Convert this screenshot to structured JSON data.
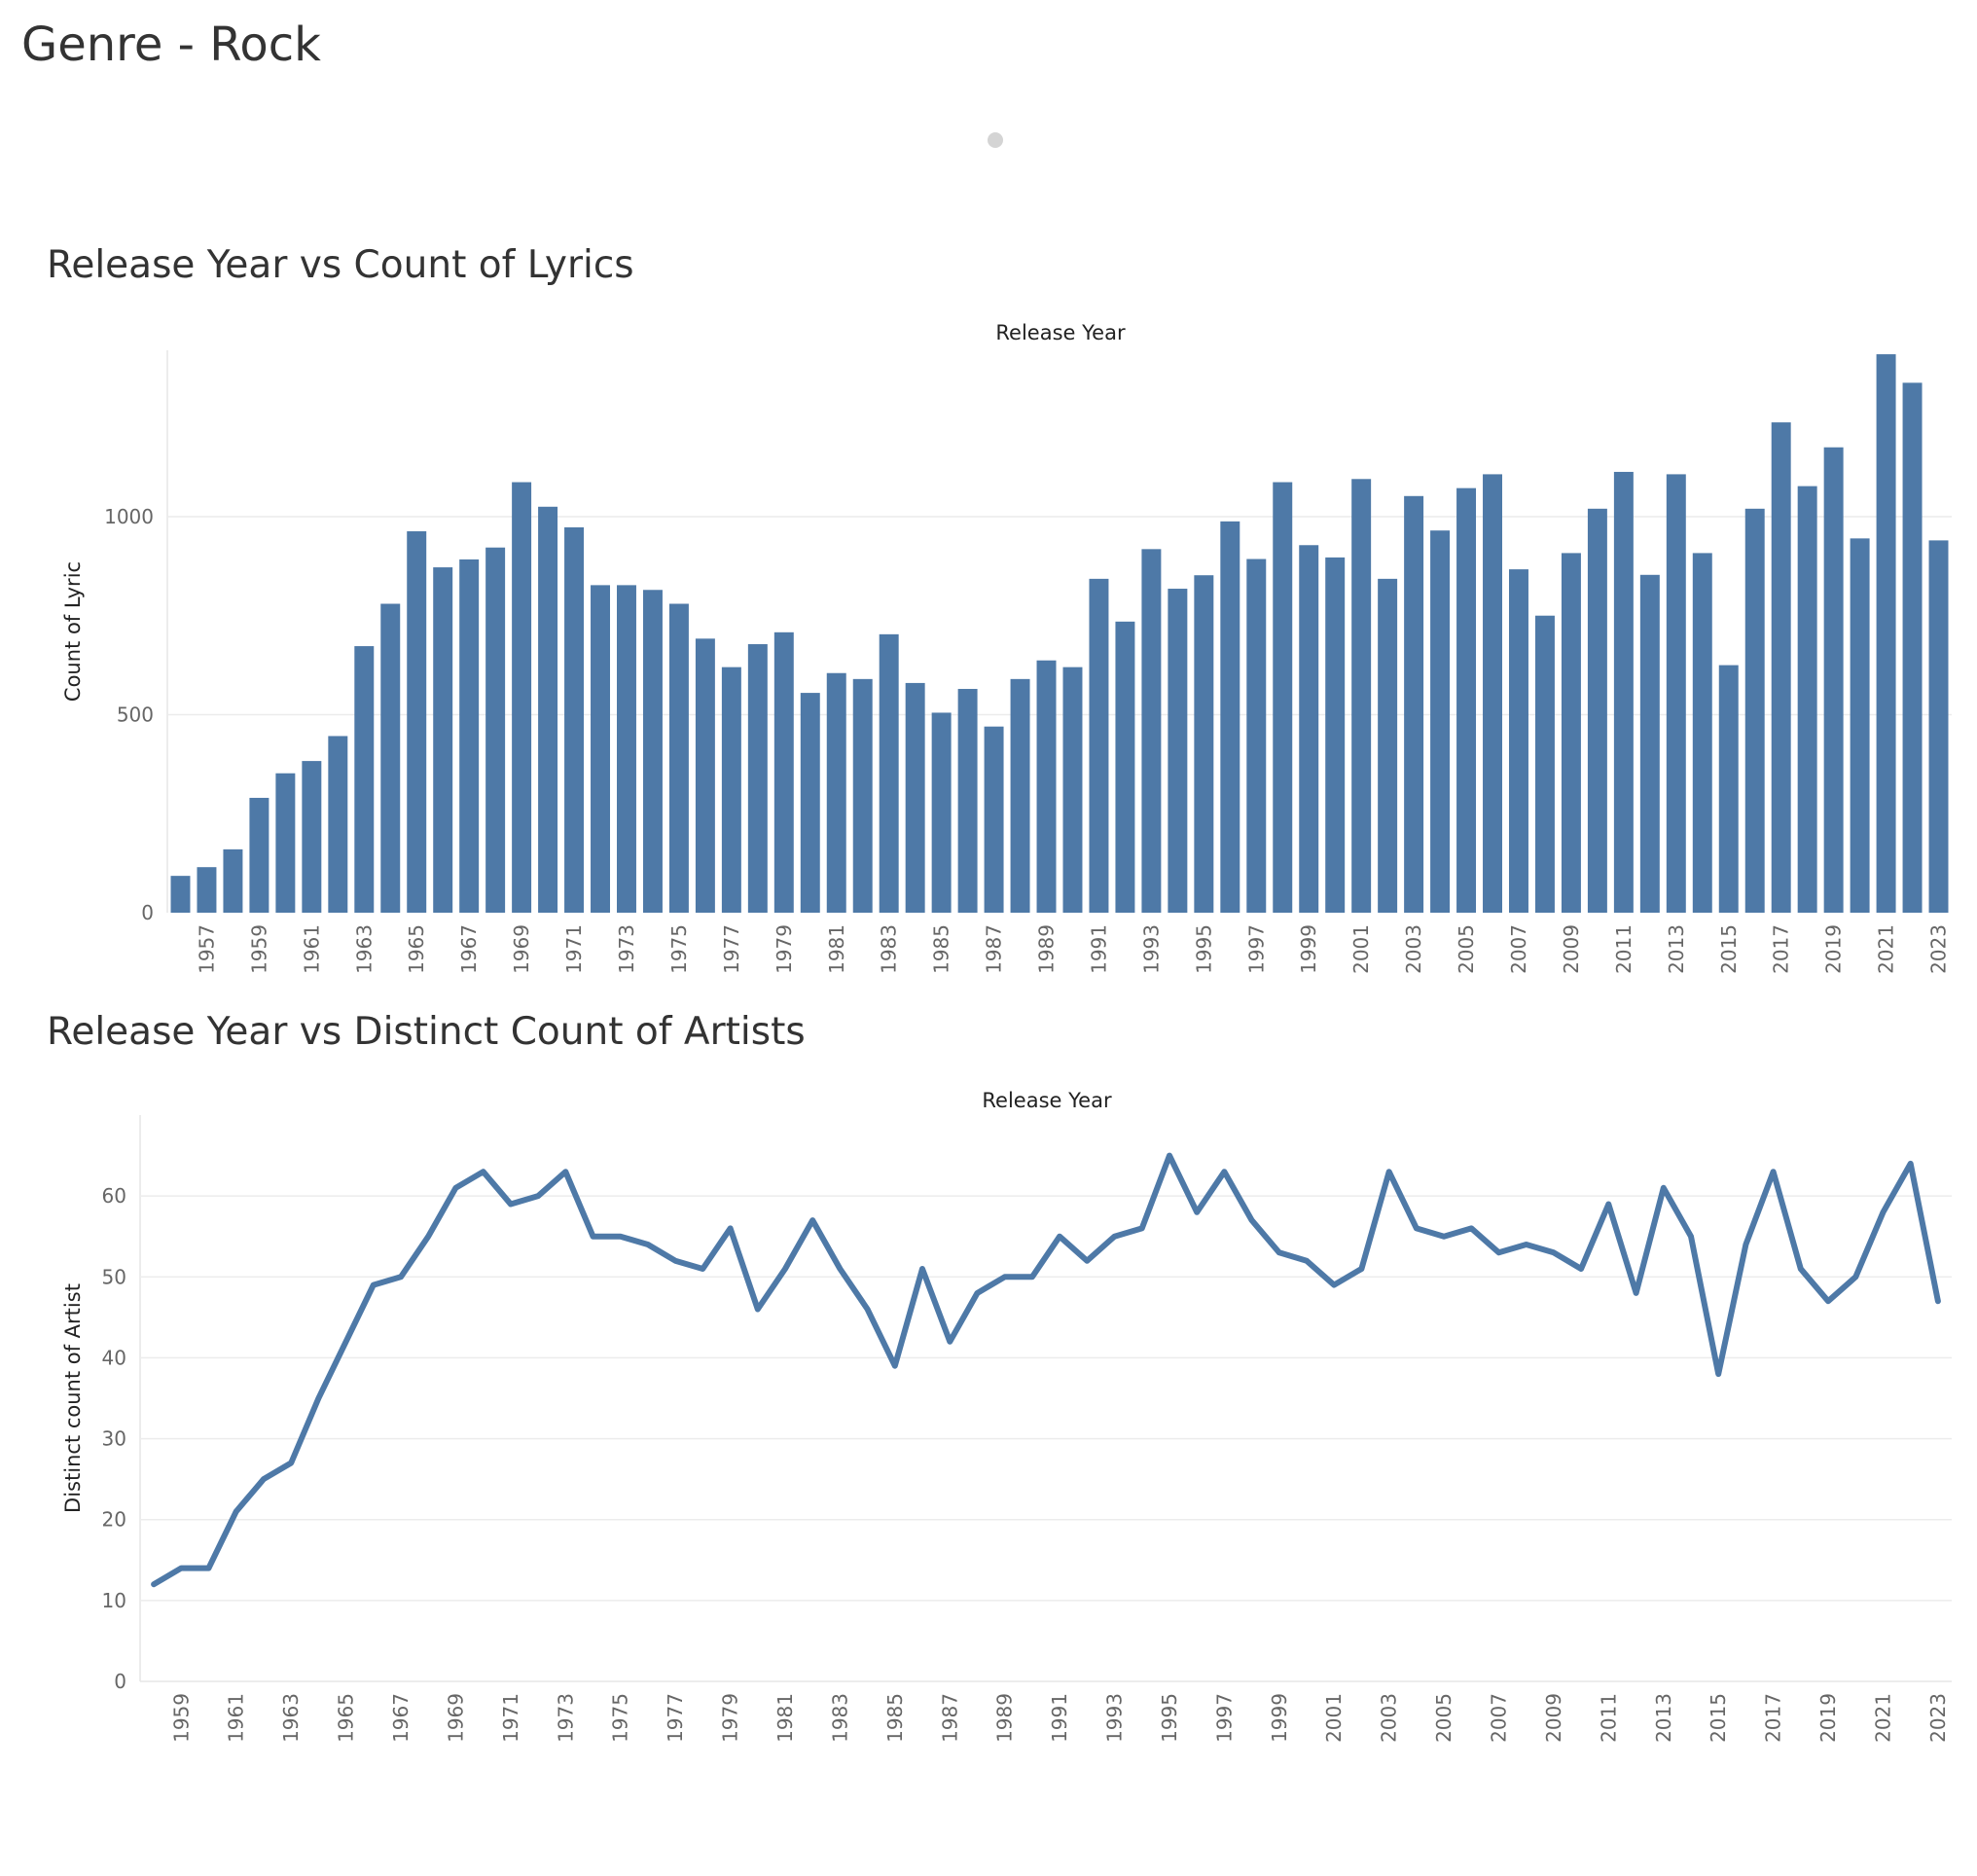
{
  "page": {
    "title": "Genre - Rock"
  },
  "colors": {
    "series": "#4e79a7",
    "grid": "#ececec",
    "text": "#333333"
  },
  "chart_data": [
    {
      "type": "bar",
      "title": "Release Year vs Count of Lyrics",
      "xlabel": "Release Year",
      "ylabel": "Count of Lyric",
      "ylim": [
        0,
        1420
      ],
      "yticks": [
        0,
        500,
        1000
      ],
      "grid": true,
      "categories": [
        1956,
        1957,
        1958,
        1959,
        1960,
        1961,
        1962,
        1963,
        1964,
        1965,
        1966,
        1967,
        1968,
        1969,
        1970,
        1971,
        1972,
        1973,
        1974,
        1975,
        1976,
        1977,
        1978,
        1979,
        1980,
        1981,
        1982,
        1983,
        1984,
        1985,
        1986,
        1987,
        1988,
        1989,
        1990,
        1991,
        1992,
        1993,
        1994,
        1995,
        1996,
        1997,
        1998,
        1999,
        2000,
        2001,
        2002,
        2003,
        2004,
        2005,
        2006,
        2007,
        2008,
        2009,
        2010,
        2011,
        2012,
        2013,
        2014,
        2015,
        2016,
        2017,
        2018,
        2019,
        2020,
        2021,
        2022,
        2023
      ],
      "xtick_labels": [
        "1957",
        "1959",
        "1961",
        "1963",
        "1965",
        "1967",
        "1969",
        "1971",
        "1973",
        "1975",
        "1977",
        "1979",
        "1981",
        "1983",
        "1985",
        "1987",
        "1989",
        "1991",
        "1993",
        "1995",
        "1997",
        "1999",
        "2001",
        "2003",
        "2005",
        "2007",
        "2009",
        "2011",
        "2013",
        "2015",
        "2017",
        "2019",
        "2021",
        "2023"
      ],
      "values": [
        93,
        115,
        160,
        290,
        352,
        383,
        446,
        673,
        780,
        963,
        872,
        892,
        922,
        1087,
        1025,
        973,
        827,
        827,
        815,
        780,
        692,
        620,
        678,
        708,
        555,
        605,
        590,
        703,
        580,
        505,
        565,
        470,
        590,
        637,
        620,
        843,
        735,
        918,
        818,
        852,
        988,
        893,
        1087,
        928,
        897,
        1095,
        843,
        1052,
        965,
        1072,
        1107,
        867,
        750,
        908,
        1020,
        1113,
        853,
        1107,
        908,
        625,
        1020,
        1238,
        1077,
        1175,
        945,
        1410,
        1338,
        940
      ]
    },
    {
      "type": "line",
      "title": "Release Year vs Distinct Count of Artists",
      "xlabel": "Release Year",
      "ylabel": "Distinct count of Artist",
      "ylim": [
        0,
        70
      ],
      "yticks": [
        0,
        10,
        20,
        30,
        40,
        50,
        60
      ],
      "grid": true,
      "x": [
        1958,
        1959,
        1960,
        1961,
        1962,
        1963,
        1964,
        1965,
        1966,
        1967,
        1968,
        1969,
        1970,
        1971,
        1972,
        1973,
        1974,
        1975,
        1976,
        1977,
        1978,
        1979,
        1980,
        1981,
        1982,
        1983,
        1984,
        1985,
        1986,
        1987,
        1988,
        1989,
        1990,
        1991,
        1992,
        1993,
        1994,
        1995,
        1996,
        1997,
        1998,
        1999,
        2000,
        2001,
        2002,
        2003,
        2004,
        2005,
        2006,
        2007,
        2008,
        2009,
        2010,
        2011,
        2012,
        2013,
        2014,
        2015,
        2016,
        2017,
        2018,
        2019,
        2020,
        2021,
        2022,
        2023
      ],
      "xtick_labels": [
        "1959",
        "1961",
        "1963",
        "1965",
        "1967",
        "1969",
        "1971",
        "1973",
        "1975",
        "1977",
        "1979",
        "1981",
        "1983",
        "1985",
        "1987",
        "1989",
        "1991",
        "1993",
        "1995",
        "1997",
        "1999",
        "2001",
        "2003",
        "2005",
        "2007",
        "2009",
        "2011",
        "2013",
        "2015",
        "2017",
        "2019",
        "2021",
        "2023"
      ],
      "values": [
        12,
        14,
        14,
        21,
        25,
        27,
        35,
        42,
        49,
        50,
        55,
        61,
        63,
        59,
        60,
        63,
        55,
        55,
        54,
        52,
        51,
        56,
        46,
        51,
        57,
        51,
        46,
        39,
        51,
        42,
        48,
        50,
        50,
        55,
        52,
        55,
        56,
        65,
        58,
        63,
        57,
        53,
        52,
        49,
        51,
        63,
        56,
        55,
        56,
        53,
        54,
        53,
        51,
        59,
        48,
        61,
        55,
        38,
        54,
        63,
        51,
        47,
        50,
        58,
        64,
        47
      ]
    }
  ]
}
